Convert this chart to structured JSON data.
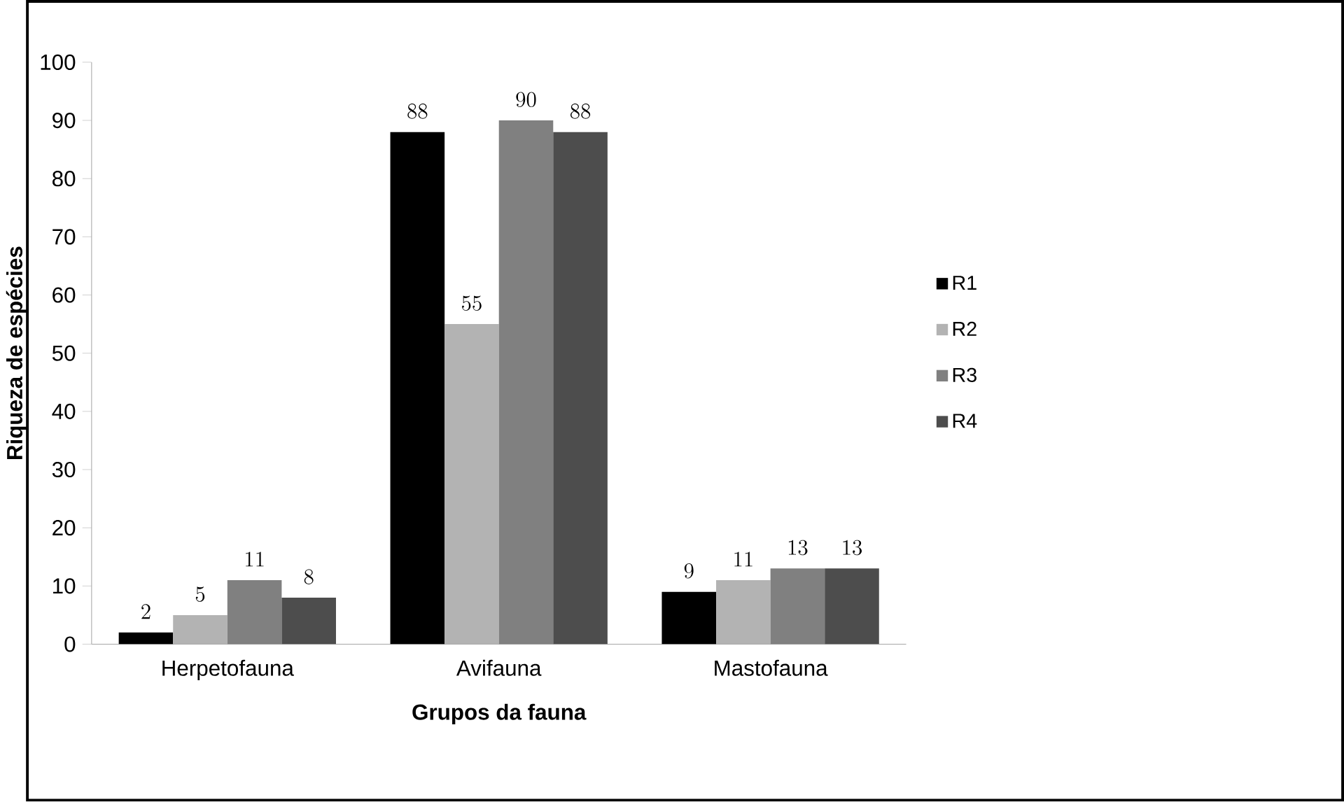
{
  "chart_data": {
    "type": "bar",
    "xlabel": "Grupos da fauna",
    "ylabel": "Riqueza de espécies",
    "categories": [
      "Herpetofauna",
      "Avifauna",
      "Mastofauna"
    ],
    "series": [
      {
        "name": "R1",
        "color": "#000000",
        "values": [
          2,
          88,
          9
        ]
      },
      {
        "name": "R2",
        "color": "#b3b3b3",
        "values": [
          5,
          55,
          11
        ]
      },
      {
        "name": "R3",
        "color": "#808080",
        "values": [
          11,
          90,
          13
        ]
      },
      {
        "name": "R4",
        "color": "#4d4d4d",
        "values": [
          8,
          88,
          13
        ]
      }
    ],
    "ylim": [
      0,
      100
    ],
    "yticks": [
      0,
      10,
      20,
      30,
      40,
      50,
      60,
      70,
      80,
      90,
      100
    ],
    "data_labels": true,
    "legend": "right",
    "grid": false
  }
}
